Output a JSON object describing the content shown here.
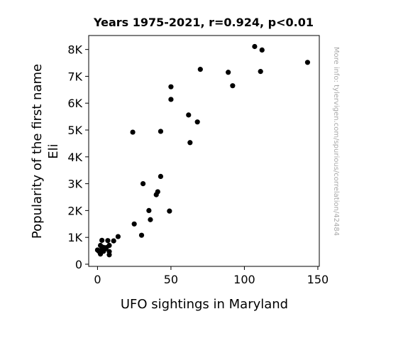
{
  "chart_data": {
    "type": "scatter",
    "title": "Years 1975-2021, r=0.924, p<0.01",
    "xlabel": "UFO sightings in Maryland",
    "ylabel_lines": [
      "Popularity of the first name",
      "Eli"
    ],
    "side_note": "More info: tylervigen.com/spurious/correlation/42484",
    "xlim": [
      -6,
      151
    ],
    "ylim": [
      -80,
      8520
    ],
    "xticks": [
      0,
      50,
      100,
      150
    ],
    "xtick_labels": [
      "0",
      "50",
      "100",
      "150"
    ],
    "yticks": [
      0,
      1000,
      2000,
      3000,
      4000,
      5000,
      6000,
      7000,
      8000
    ],
    "ytick_labels": [
      "0",
      "1K",
      "2K",
      "3K",
      "4K",
      "5K",
      "6K",
      "7K",
      "8K"
    ],
    "grid": false,
    "legend": "none",
    "marker_color": "#000000",
    "side_note_color": "#aaaaaa",
    "points": [
      {
        "x": 0,
        "y": 530
      },
      {
        "x": 1,
        "y": 480
      },
      {
        "x": 2,
        "y": 380
      },
      {
        "x": 2,
        "y": 700
      },
      {
        "x": 3,
        "y": 890
      },
      {
        "x": 3,
        "y": 560
      },
      {
        "x": 4,
        "y": 480
      },
      {
        "x": 4,
        "y": 630
      },
      {
        "x": 5,
        "y": 560
      },
      {
        "x": 6,
        "y": 620
      },
      {
        "x": 7,
        "y": 880
      },
      {
        "x": 8,
        "y": 470
      },
      {
        "x": 8,
        "y": 700
      },
      {
        "x": 8,
        "y": 350
      },
      {
        "x": 11,
        "y": 870
      },
      {
        "x": 14,
        "y": 1030
      },
      {
        "x": 24,
        "y": 4920
      },
      {
        "x": 25,
        "y": 1500
      },
      {
        "x": 30,
        "y": 1080
      },
      {
        "x": 31,
        "y": 3000
      },
      {
        "x": 35,
        "y": 2000
      },
      {
        "x": 36,
        "y": 1660
      },
      {
        "x": 40,
        "y": 2590
      },
      {
        "x": 41,
        "y": 2700
      },
      {
        "x": 43,
        "y": 3270
      },
      {
        "x": 43,
        "y": 4950
      },
      {
        "x": 49,
        "y": 1980
      },
      {
        "x": 50,
        "y": 6140
      },
      {
        "x": 50,
        "y": 6610
      },
      {
        "x": 62,
        "y": 5560
      },
      {
        "x": 63,
        "y": 4530
      },
      {
        "x": 68,
        "y": 5300
      },
      {
        "x": 70,
        "y": 7260
      },
      {
        "x": 89,
        "y": 7150
      },
      {
        "x": 92,
        "y": 6650
      },
      {
        "x": 107,
        "y": 8110
      },
      {
        "x": 111,
        "y": 7180
      },
      {
        "x": 112,
        "y": 7980
      },
      {
        "x": 143,
        "y": 7520
      }
    ]
  }
}
